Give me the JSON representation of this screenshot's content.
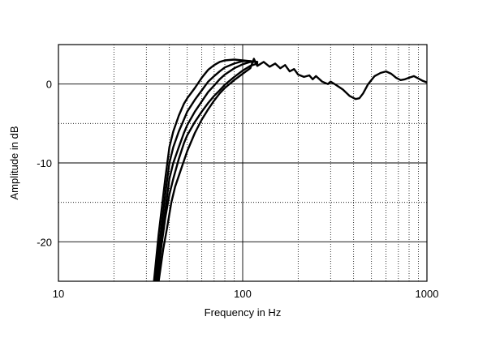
{
  "chart_data": {
    "type": "line",
    "title": "",
    "xlabel": "Frequency in Hz",
    "ylabel": "Amplitude in dB",
    "x_scale": "log",
    "xlim": [
      10,
      1000
    ],
    "ylim": [
      -25,
      5
    ],
    "x_ticks": [
      {
        "value": 10,
        "label": "10"
      },
      {
        "value": 100,
        "label": "100"
      },
      {
        "value": 1000,
        "label": "1000"
      }
    ],
    "y_ticks": [
      {
        "value": 0,
        "label": "0"
      },
      {
        "value": -10,
        "label": "-10"
      },
      {
        "value": -20,
        "label": "-20"
      }
    ],
    "grid": true,
    "line_color": "#000000",
    "series": [
      {
        "x": [
          33,
          35,
          38,
          40,
          42,
          45,
          48,
          50,
          55,
          60,
          65,
          70,
          75,
          80,
          90,
          100,
          110,
          120
        ],
        "y": [
          -25,
          -19,
          -12,
          -8,
          -6,
          -4,
          -2.5,
          -1.8,
          -0.5,
          0.8,
          1.8,
          2.4,
          2.8,
          3.0,
          3.1,
          3.0,
          2.9,
          2.8
        ]
      },
      {
        "x": [
          33.5,
          35,
          38,
          40,
          42,
          45,
          48,
          50,
          55,
          60,
          65,
          70,
          75,
          80,
          90,
          100,
          110,
          120
        ],
        "y": [
          -25,
          -21,
          -14,
          -10,
          -8,
          -6,
          -4.5,
          -3.5,
          -2,
          -0.8,
          0.3,
          1.0,
          1.6,
          2.1,
          2.6,
          2.9,
          2.9,
          2.8
        ]
      },
      {
        "x": [
          34,
          36,
          38,
          40,
          42,
          45,
          48,
          50,
          55,
          60,
          65,
          70,
          75,
          80,
          90,
          100,
          110,
          120
        ],
        "y": [
          -25,
          -20,
          -16,
          -12,
          -10,
          -8,
          -6.2,
          -5.2,
          -3.5,
          -2.2,
          -1.0,
          -0.2,
          0.6,
          1.2,
          2.0,
          2.5,
          2.8,
          2.8
        ]
      },
      {
        "x": [
          34.5,
          36,
          38,
          40,
          42,
          45,
          48,
          50,
          55,
          60,
          65,
          70,
          75,
          80,
          90,
          100,
          110,
          120
        ],
        "y": [
          -25,
          -21,
          -17,
          -14,
          -12,
          -9.5,
          -7.5,
          -6.5,
          -4.8,
          -3.5,
          -2.4,
          -1.5,
          -0.8,
          -0.1,
          0.9,
          1.7,
          2.3,
          2.6
        ]
      },
      {
        "x": [
          35,
          37,
          39,
          41,
          43,
          46,
          50,
          55,
          60,
          65,
          70,
          75,
          80,
          90,
          100,
          110,
          115,
          120,
          130,
          140,
          150,
          160,
          170,
          180,
          190,
          200,
          215,
          230,
          240,
          250,
          270,
          290,
          300,
          320,
          350,
          380,
          410,
          430,
          450,
          480,
          520,
          560,
          600,
          640,
          680,
          720,
          760,
          800,
          850,
          900,
          950,
          1000
        ],
        "y": [
          -25,
          -21,
          -18,
          -15,
          -13,
          -11,
          -8.5,
          -6.2,
          -4.5,
          -3.2,
          -2.1,
          -1.2,
          -0.5,
          0.5,
          1.3,
          2.0,
          3.2,
          2.3,
          2.8,
          2.2,
          2.6,
          2.0,
          2.4,
          1.6,
          1.9,
          1.2,
          0.9,
          1.1,
          0.6,
          1.0,
          0.3,
          0.0,
          0.3,
          -0.1,
          -0.7,
          -1.5,
          -1.9,
          -1.8,
          -1.2,
          0.0,
          1.0,
          1.4,
          1.6,
          1.3,
          0.8,
          0.5,
          0.6,
          0.8,
          1.0,
          0.7,
          0.4,
          0.2
        ]
      }
    ]
  }
}
